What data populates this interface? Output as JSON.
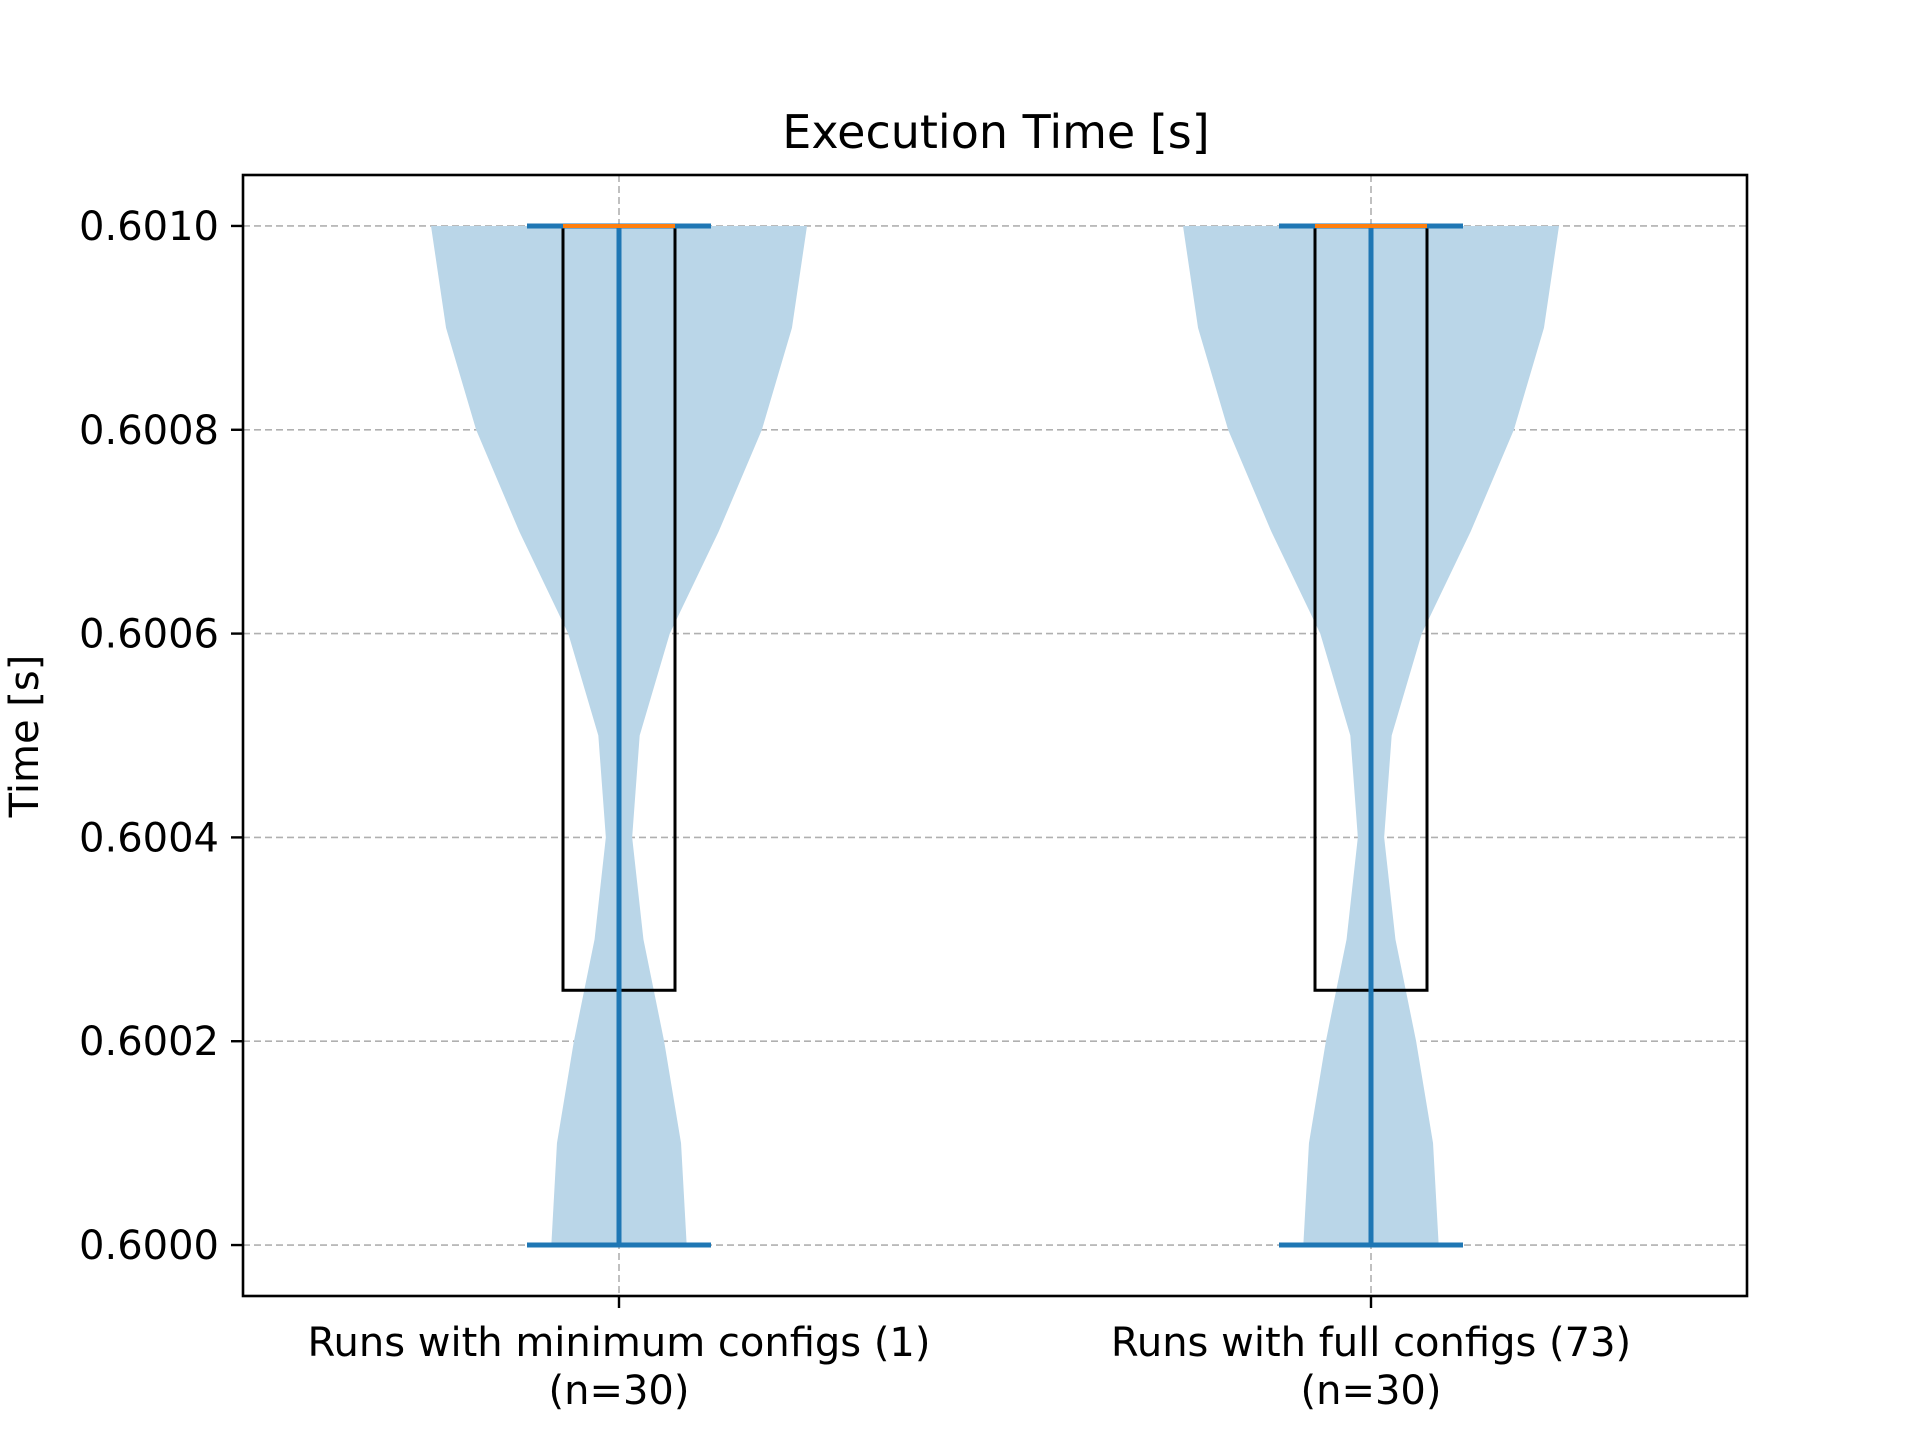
{
  "chart_data": {
    "type": "violin+box",
    "title": "Execution Time [s]",
    "xlabel": "",
    "ylabel": "Time [s]",
    "ylim": [
      0.59995,
      0.60105
    ],
    "yticks": [
      "0.6000",
      "0.6002",
      "0.6004",
      "0.6006",
      "0.6008",
      "0.6010"
    ],
    "ytick_values": [
      0.6,
      0.6002,
      0.6004,
      0.6006,
      0.6008,
      0.601
    ],
    "grid": true,
    "categories": [
      {
        "line1": "Runs with minimum configs (1)",
        "line2": "(n=30)"
      },
      {
        "line1": "Runs with full configs (73)",
        "line2": "(n=30)"
      }
    ],
    "groups": [
      {
        "min": 0.6,
        "max": 0.601,
        "box": {
          "q1": 0.60025,
          "median": 0.601,
          "q3": 0.601
        },
        "density_y": [
          0.6,
          0.6001,
          0.6002,
          0.6003,
          0.6004,
          0.6005,
          0.6006,
          0.6007,
          0.6008,
          0.6009,
          0.601
        ],
        "density_w": [
          0.36,
          0.33,
          0.24,
          0.13,
          0.07,
          0.11,
          0.27,
          0.53,
          0.76,
          0.92,
          1.0
        ]
      },
      {
        "min": 0.6,
        "max": 0.601,
        "box": {
          "q1": 0.60025,
          "median": 0.601,
          "q3": 0.601
        },
        "density_y": [
          0.6,
          0.6001,
          0.6002,
          0.6003,
          0.6004,
          0.6005,
          0.6006,
          0.6007,
          0.6008,
          0.6009,
          0.601
        ],
        "density_w": [
          0.36,
          0.33,
          0.24,
          0.13,
          0.07,
          0.11,
          0.27,
          0.53,
          0.76,
          0.92,
          1.0
        ]
      }
    ],
    "colors": {
      "violin_fill": "#bad6e8",
      "whisker": "#1f77b4",
      "median": "#ff7f0e",
      "box": "#000000"
    }
  }
}
